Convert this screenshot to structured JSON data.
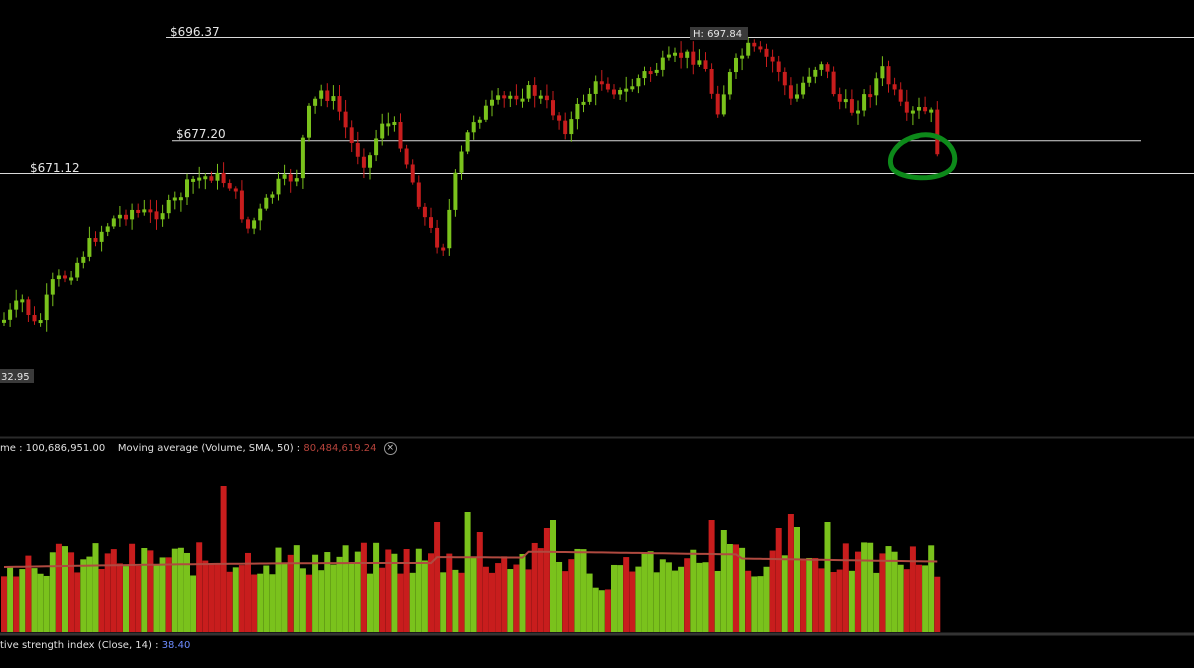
{
  "chart_data": [
    {
      "type": "candlestick",
      "price_levels": [
        {
          "label": "$696.37",
          "value": 696.37
        },
        {
          "label": "$677.20",
          "value": 677.2
        },
        {
          "label": "$671.12",
          "value": 671.12
        }
      ],
      "high_label": "H: 697.84",
      "low_label": "32.95",
      "colors": {
        "up": "#7ac21c",
        "down": "#c81d1d",
        "annotation": "#0d8a1a",
        "level_line": "#d9d9d9"
      }
    },
    {
      "type": "bar",
      "title_prefix": "me",
      "volume_value": "100,686,951.00",
      "ma_label": "Moving average",
      "ma_params": "(Volume, SMA, 50)",
      "ma_value": "80,484,619.24",
      "close_symbol": "×",
      "colors": {
        "up": "#7ac21c",
        "down": "#c81d1d",
        "ma_line": "#b04a40"
      }
    },
    {
      "type": "line",
      "label": "tive strength index",
      "params": "(Close, 14)",
      "value": "38.40"
    }
  ]
}
